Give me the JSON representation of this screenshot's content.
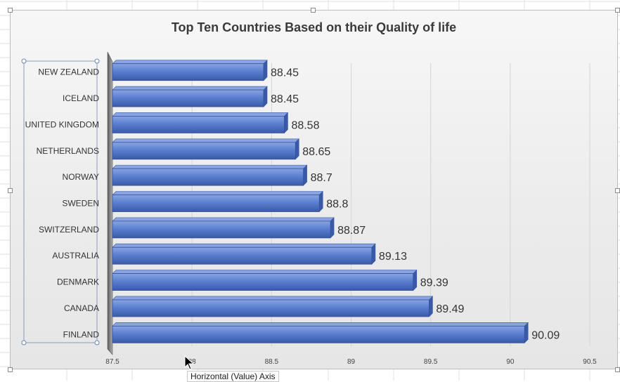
{
  "chart_data": {
    "type": "bar",
    "orientation": "horizontal",
    "title": "Top Ten Countries Based on their Quality of life",
    "categories": [
      "NEW ZEALAND",
      "ICELAND",
      "UNITED KINGDOM",
      "NETHERLANDS",
      "NORWAY",
      "SWEDEN",
      "SWITZERLAND",
      "AUSTRALIA",
      "DENMARK",
      "CANADA",
      "FINLAND"
    ],
    "values": [
      88.45,
      88.45,
      88.58,
      88.65,
      88.7,
      88.8,
      88.87,
      89.13,
      89.39,
      89.49,
      90.09
    ],
    "data_labels": [
      "88.45",
      "88.45",
      "88.58",
      "88.65",
      "88.7",
      "88.8",
      "88.87",
      "89.13",
      "89.39",
      "89.49",
      "90.09"
    ],
    "xlim": [
      87.5,
      90.5
    ],
    "x_ticks": [
      "87.5",
      "88",
      "88.5",
      "89",
      "89.5",
      "90",
      "90.5"
    ],
    "xlabel": "",
    "ylabel": "",
    "grid": true,
    "bar_color": "#5b7fd0",
    "bar_dark": "#3a5aa8",
    "bar_light": "#8aa4e2"
  },
  "ui": {
    "tooltip": "Horizontal (Value) Axis"
  }
}
